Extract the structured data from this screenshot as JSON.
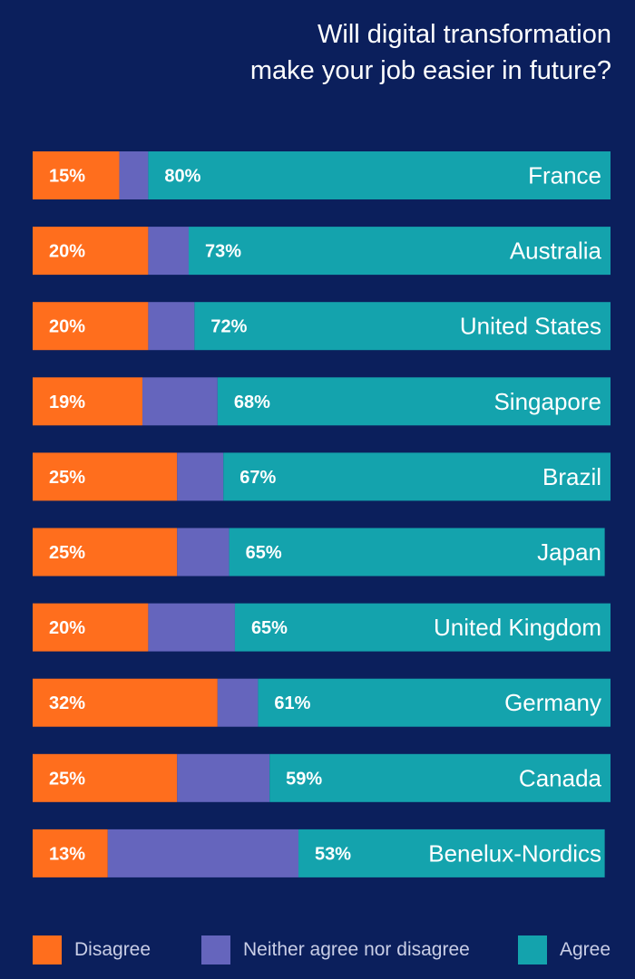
{
  "chart_data": {
    "type": "bar",
    "orientation": "horizontal",
    "stacked": true,
    "title_lines": [
      "Will digital transformation",
      "make your job easier in future?"
    ],
    "categories": [
      "France",
      "Australia",
      "United States",
      "Singapore",
      "Brazil",
      "Japan",
      "United Kingdom",
      "Germany",
      "Canada",
      "Benelux-Nordics"
    ],
    "series": [
      {
        "name": "Disagree",
        "color": "#ff6e1d",
        "values": [
          15,
          20,
          20,
          19,
          25,
          25,
          20,
          32,
          25,
          13
        ],
        "labeled": true
      },
      {
        "name": "Neither agree nor disagree",
        "color": "#6565bd",
        "values": [
          5,
          7,
          8,
          13,
          8,
          9,
          15,
          7,
          16,
          33
        ],
        "labeled": false
      },
      {
        "name": "Agree",
        "color": "#14a3ad",
        "values": [
          80,
          73,
          72,
          68,
          67,
          65,
          65,
          61,
          59,
          53
        ],
        "labeled": true
      }
    ],
    "xlim": [
      0,
      100
    ],
    "grid": false,
    "legend_position": "bottom"
  }
}
